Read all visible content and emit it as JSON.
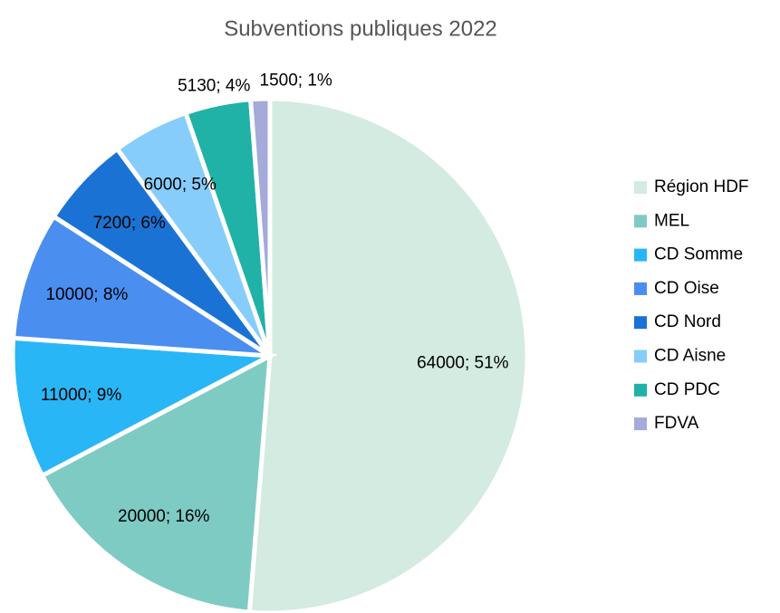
{
  "chart_data": {
    "type": "pie",
    "title": "Subventions publiques 2022",
    "categories": [
      "Région HDF",
      "MEL",
      "CD Somme",
      "CD Oise",
      "CD Nord",
      "CD Aisne",
      "CD PDC",
      "FDVA"
    ],
    "values": [
      64000,
      20000,
      11000,
      10000,
      7200,
      6000,
      5130,
      1500
    ],
    "value_labels": [
      "64000; 51%",
      "20000; 16%",
      "11000; 9%",
      "10000; 8%",
      "7200; 6%",
      "6000; 5%",
      "5130; 4%",
      "1500; 1%"
    ],
    "colors": [
      "#d3ebe0",
      "#7ecbc4",
      "#29b6f6",
      "#4a8ef0",
      "#1a73d4",
      "#87cdfb",
      "#20b2a6",
      "#a4aad9"
    ],
    "legend": "right"
  }
}
